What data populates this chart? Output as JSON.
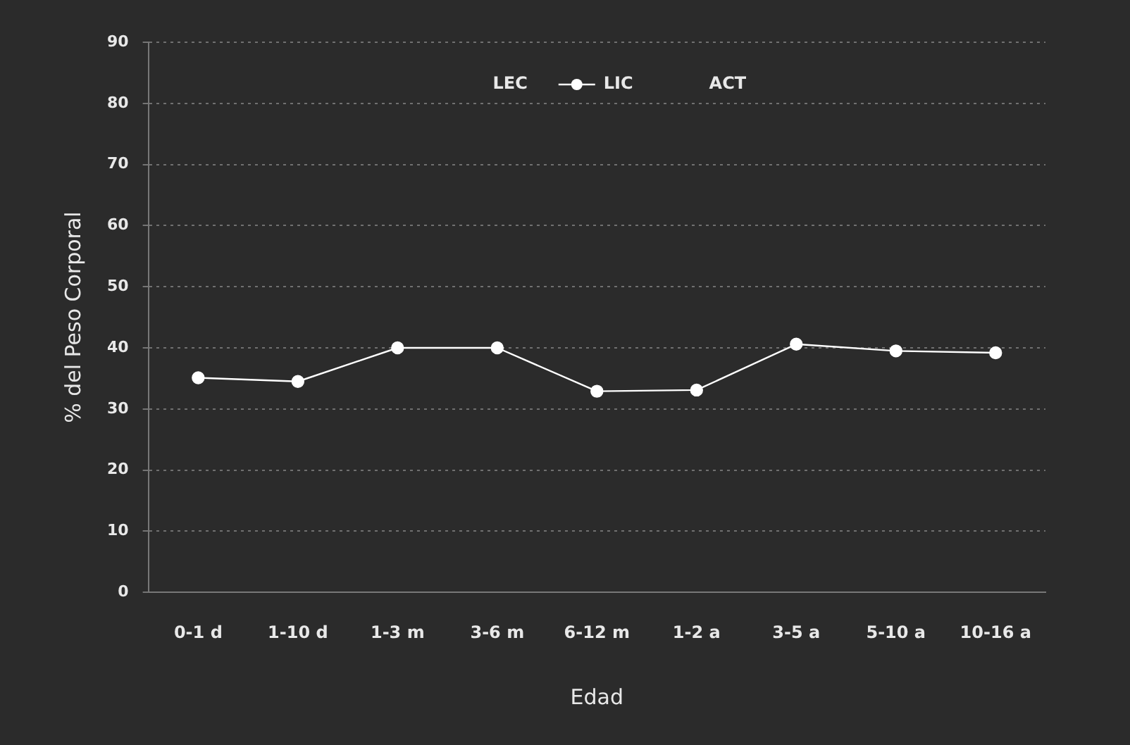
{
  "chart_data": {
    "type": "line",
    "xlabel": "Edad",
    "ylabel": "% del Peso Corporal",
    "categories": [
      "0-1 d",
      "1-10 d",
      "1-3 m",
      "3-6 m",
      "6-12 m",
      "1-2 a",
      "3-5 a",
      "5-10 a",
      "10-16 a"
    ],
    "series": [
      {
        "name": "LEC",
        "values": [
          null,
          null,
          null,
          null,
          null,
          null,
          null,
          null,
          null
        ]
      },
      {
        "name": "LIC",
        "color": "#ffffff",
        "values": [
          35.1,
          34.5,
          40,
          40,
          32.9,
          33.1,
          40.6,
          39.5,
          39.2
        ]
      },
      {
        "name": "ACT",
        "values": [
          null,
          null,
          null,
          null,
          null,
          null,
          null,
          null,
          null
        ]
      }
    ],
    "ylim": [
      0,
      90
    ],
    "yticks": [
      0,
      10,
      20,
      30,
      40,
      50,
      60,
      70,
      80,
      90
    ],
    "grid": "y",
    "legend": "top",
    "marker": "circle",
    "line_style": "solid"
  }
}
